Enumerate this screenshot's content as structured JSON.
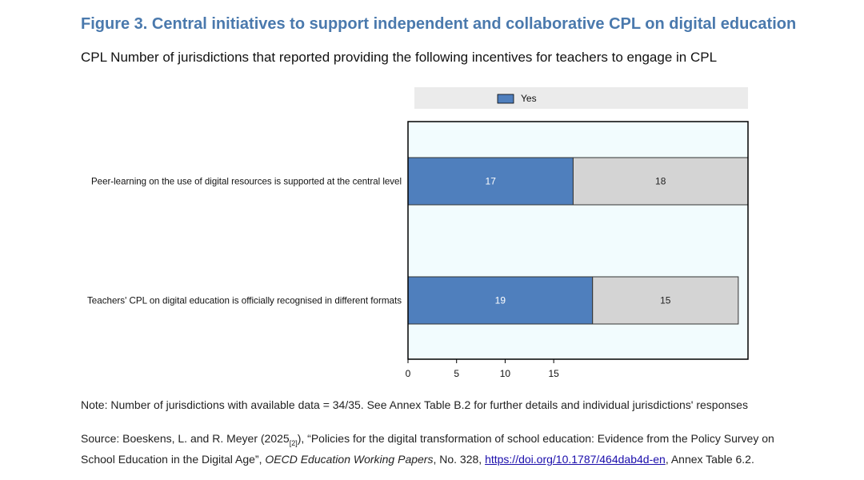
{
  "figure": {
    "title": "Figure 3. Central initiatives to support independent and collaborative CPL on digital education",
    "subtitle": "CPL Number of jurisdictions that reported providing the following incentives for teachers to engage in CPL"
  },
  "chart_data": {
    "type": "bar",
    "orientation": "horizontal",
    "stacked": true,
    "categories": [
      "Peer-learning on the use of digital resources is supported at the central level",
      "Teachers' CPL on digital education is officially recognised in different formats"
    ],
    "series": [
      {
        "name": "Yes",
        "values": [
          17,
          19
        ],
        "color": "#4f7fbd"
      },
      {
        "values": [
          18,
          15
        ],
        "color": "#d4d4d4"
      }
    ],
    "data_labels": [
      [
        "17",
        "18"
      ],
      [
        "19",
        "15"
      ]
    ],
    "xticks": [
      0,
      5,
      10,
      15
    ],
    "xlim": [
      0,
      35
    ],
    "legend": {
      "position": "top",
      "entries": [
        "Yes"
      ]
    },
    "plot_background": "#f2fcfe",
    "grid": false
  },
  "notes": {
    "note": "Note: Number of jurisdictions with available data = 34/35. See Annex Table B.2 for further details and individual jurisdictions' responses",
    "source_lead": "Source: Boeskens, L. and R. Meyer (2025",
    "source_ref": "[2]",
    "source_part2": "), “Policies for the digital transformation of school education: Evidence from the Policy Survey on School Education in the Digital Age”, ",
    "source_journal": "OECD Education Working Papers",
    "source_part3": ", No. 328, ",
    "source_link": "https://doi.org/10.1787/464dab4d-en",
    "source_tail": ", Annex Table 6.2."
  }
}
